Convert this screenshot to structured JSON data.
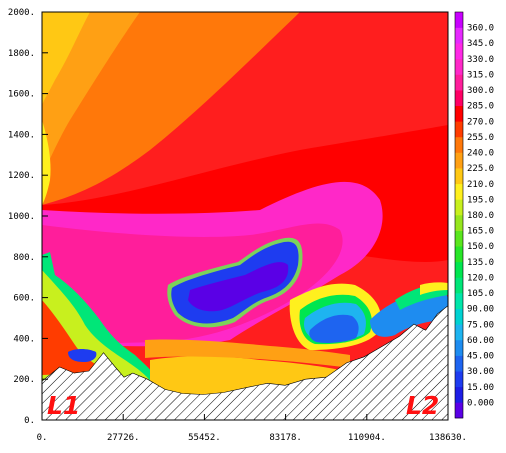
{
  "chart_data": {
    "type": "heatmap",
    "title": "",
    "xlabel": "",
    "ylabel": "",
    "xlim": [
      0,
      138630
    ],
    "ylim": [
      0,
      2000
    ],
    "grid": false,
    "x_ticks": [
      0,
      27726,
      55452,
      83178,
      110904,
      138630
    ],
    "x_tick_labels": [
      "0.",
      "27726.",
      "55452.",
      "83178.",
      "110904.",
      "138630."
    ],
    "y_ticks": [
      0,
      200,
      400,
      600,
      800,
      1000,
      1200,
      1400,
      1600,
      1800,
      2000
    ],
    "y_tick_labels": [
      "0.",
      "200.",
      "400.",
      "600.",
      "800.",
      "1000.",
      "1200.",
      "1400.",
      "1600.",
      "1800.",
      "2000."
    ],
    "colorbar": {
      "placement": "right",
      "levels": [
        0,
        15,
        30,
        45,
        60,
        75,
        90,
        105,
        120,
        135,
        150,
        165,
        180,
        195,
        210,
        225,
        240,
        255,
        270,
        285,
        300,
        315,
        330,
        345,
        360
      ],
      "labels": [
        "0.000",
        "15.00",
        "30.00",
        "45.00",
        "60.00",
        "75.00",
        "90.00",
        "105.0",
        "120.0",
        "135.0",
        "150.0",
        "165.0",
        "180.0",
        "195.0",
        "210.0",
        "225.0",
        "240.0",
        "255.0",
        "270.0",
        "285.0",
        "300.0",
        "315.0",
        "330.0",
        "345.0",
        "360.0"
      ],
      "colors": [
        "#5a00e6",
        "#1e1ee6",
        "#1e3cf0",
        "#1e64f0",
        "#1e8cf0",
        "#1eb4f0",
        "#00d2d2",
        "#00e6aa",
        "#00e678",
        "#00e650",
        "#28e628",
        "#5ae61e",
        "#96e61e",
        "#c8f01e",
        "#fff01e",
        "#ffc814",
        "#ffa014",
        "#ff780a",
        "#ff3c00",
        "#ff0000",
        "#ff0064",
        "#ff1e9b",
        "#ff28c8",
        "#ff28e6",
        "#e628ff",
        "#c800ff"
      ]
    },
    "terrain": {
      "x": [
        0,
        6000,
        11000,
        16000,
        21000,
        25000,
        28000,
        31000,
        36000,
        42000,
        48000,
        55000,
        62000,
        70000,
        77000,
        83000,
        90000,
        97000,
        104000,
        110000,
        116000,
        122000,
        127000,
        131000,
        135000,
        138630
      ],
      "elevation": [
        190,
        260,
        230,
        240,
        330,
        260,
        210,
        230,
        200,
        150,
        130,
        125,
        135,
        160,
        180,
        170,
        200,
        210,
        280,
        310,
        360,
        410,
        470,
        440,
        520,
        560
      ]
    },
    "annotations": [
      "L1",
      "L2"
    ]
  }
}
